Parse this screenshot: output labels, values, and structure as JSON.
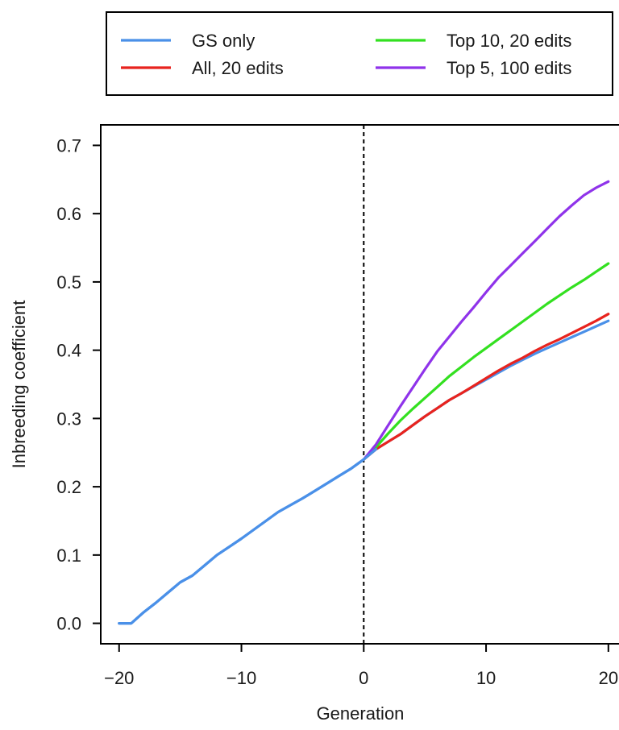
{
  "chart_data": {
    "type": "line",
    "title": "",
    "xlabel": "Generation",
    "ylabel": "Inbreeding coefficient",
    "xlim": [
      -21.5,
      21
    ],
    "ylim": [
      -0.03,
      0.73
    ],
    "xticks": [
      -20,
      -10,
      0,
      10,
      20
    ],
    "xtick_labels": [
      "−20",
      "−10",
      "0",
      "10",
      "20"
    ],
    "yticks": [
      0.0,
      0.1,
      0.2,
      0.3,
      0.4,
      0.5,
      0.6,
      0.7
    ],
    "ytick_labels": [
      "0.0",
      "0.1",
      "0.2",
      "0.3",
      "0.4",
      "0.5",
      "0.6",
      "0.7"
    ],
    "grid": false,
    "vline": {
      "x": 0,
      "style": "dashed",
      "color": "#000000"
    },
    "legend": {
      "placement": "top, above plot",
      "columns": 2
    },
    "series": [
      {
        "name": "GS only",
        "color": "#4a90e8",
        "x": [
          -20,
          -19,
          -18,
          -17,
          -16,
          -15,
          -14,
          -13,
          -12,
          -11,
          -10,
          -9,
          -8,
          -7,
          -6,
          -5,
          -4,
          -3,
          -2,
          -1,
          0,
          1,
          2,
          3,
          4,
          5,
          6,
          7,
          8,
          9,
          10,
          11,
          12,
          13,
          14,
          15,
          16,
          17,
          18,
          19,
          20
        ],
        "values": [
          0.0,
          0.0,
          0.016,
          0.03,
          0.045,
          0.06,
          0.07,
          0.085,
          0.1,
          0.112,
          0.124,
          0.137,
          0.15,
          0.163,
          0.173,
          0.183,
          0.194,
          0.205,
          0.216,
          0.227,
          0.24,
          0.255,
          0.266,
          0.277,
          0.29,
          0.303,
          0.315,
          0.327,
          0.337,
          0.347,
          0.357,
          0.367,
          0.377,
          0.386,
          0.395,
          0.403,
          0.411,
          0.419,
          0.427,
          0.435,
          0.443
        ]
      },
      {
        "name": "All, 20 edits",
        "color": "#e8231e",
        "x": [
          0,
          1,
          2,
          3,
          4,
          5,
          6,
          7,
          8,
          9,
          10,
          11,
          12,
          13,
          14,
          15,
          16,
          17,
          18,
          19,
          20
        ],
        "values": [
          0.24,
          0.255,
          0.266,
          0.277,
          0.29,
          0.303,
          0.315,
          0.327,
          0.337,
          0.348,
          0.359,
          0.37,
          0.38,
          0.389,
          0.399,
          0.408,
          0.416,
          0.425,
          0.434,
          0.443,
          0.453
        ]
      },
      {
        "name": "Top 10, 20 edits",
        "color": "#33e020",
        "x": [
          0,
          1,
          2,
          3,
          4,
          5,
          6,
          7,
          8,
          9,
          10,
          11,
          12,
          13,
          14,
          15,
          16,
          17,
          18,
          19,
          20
        ],
        "values": [
          0.24,
          0.258,
          0.278,
          0.297,
          0.314,
          0.33,
          0.346,
          0.362,
          0.376,
          0.39,
          0.403,
          0.416,
          0.429,
          0.442,
          0.455,
          0.468,
          0.48,
          0.492,
          0.503,
          0.515,
          0.527
        ]
      },
      {
        "name": "Top 5, 100 edits",
        "color": "#8f33ea",
        "x": [
          0,
          1,
          2,
          3,
          4,
          5,
          6,
          7,
          8,
          9,
          10,
          11,
          12,
          13,
          14,
          15,
          16,
          17,
          18,
          19,
          20
        ],
        "values": [
          0.24,
          0.262,
          0.29,
          0.318,
          0.345,
          0.372,
          0.398,
          0.42,
          0.442,
          0.463,
          0.485,
          0.506,
          0.524,
          0.542,
          0.56,
          0.578,
          0.596,
          0.612,
          0.627,
          0.638,
          0.647
        ]
      }
    ]
  }
}
